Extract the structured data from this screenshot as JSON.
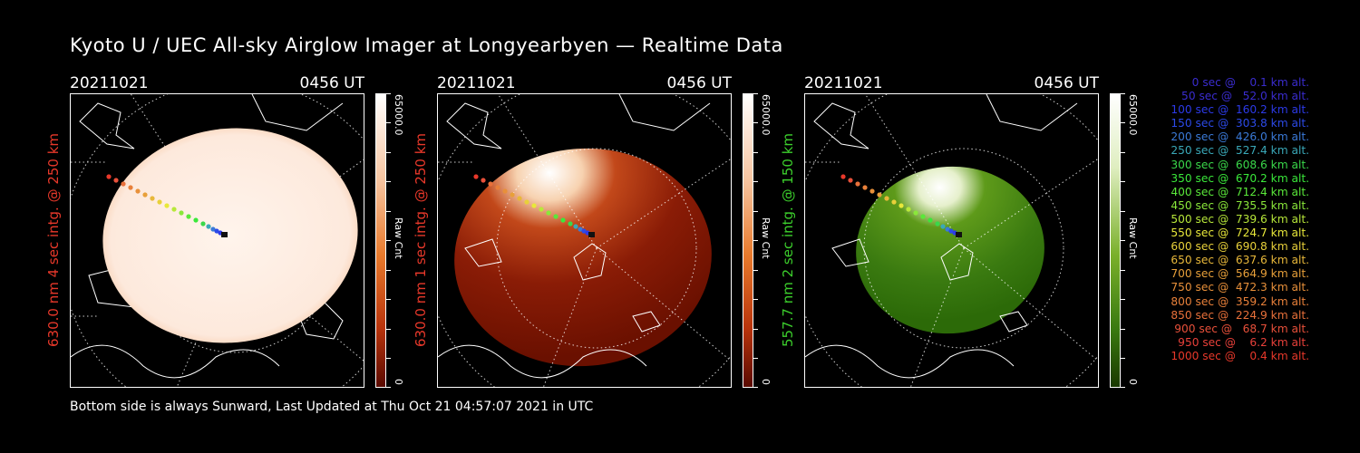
{
  "title": "Kyoto U / UEC All-sky Airglow Imager at Longyearbyen — Realtime Data",
  "footer": "Bottom side is always Sunward, Last Updated at Thu Oct 21 04:57:07 2021 in UTC",
  "panels": [
    {
      "date": "20211021",
      "time": "0456 UT",
      "label": "630.0 nm 4 sec intg. @ 250 km",
      "label_color": "#e8382a",
      "colorbar_max": "65000.0",
      "colorbar_min": "0",
      "colorbar_label": "Raw Cnt",
      "colorbar_top": "#ffffff",
      "colorbar_mid": "#e87a2c",
      "colorbar_bottom": "#5a0a00"
    },
    {
      "date": "20211021",
      "time": "0456 UT",
      "label": "630.0 nm 1 sec intg. @ 250 km",
      "label_color": "#e8382a",
      "colorbar_max": "65000.0",
      "colorbar_min": "0",
      "colorbar_label": "Raw Cnt",
      "colorbar_top": "#ffffff",
      "colorbar_mid": "#e87a2c",
      "colorbar_bottom": "#5a0a00"
    },
    {
      "date": "20211021",
      "time": "0456 UT",
      "label": "557.7 nm 2 sec intg. @ 150 km",
      "label_color": "#3ccf2c",
      "colorbar_max": "65000.0",
      "colorbar_min": "0",
      "colorbar_label": "Raw Cnt",
      "colorbar_top": "#ffffff",
      "colorbar_mid": "#7ab02a",
      "colorbar_bottom": "#1a3a00"
    }
  ],
  "legend": [
    {
      "text": "   0 sec @    0.1 km alt.",
      "color": "#3a2ccf"
    },
    {
      "text": "  50 sec @   52.0 km alt.",
      "color": "#3a2ccf"
    },
    {
      "text": " 100 sec @  160.2 km alt.",
      "color": "#2c3ae8"
    },
    {
      "text": " 150 sec @  303.8 km alt.",
      "color": "#2c4ae8"
    },
    {
      "text": " 200 sec @  426.0 km alt.",
      "color": "#3a7ad8"
    },
    {
      "text": " 250 sec @  527.4 km alt.",
      "color": "#3aa8b8"
    },
    {
      "text": " 300 sec @  608.6 km alt.",
      "color": "#3ad84a"
    },
    {
      "text": " 350 sec @  670.2 km alt.",
      "color": "#3ae83a"
    },
    {
      "text": " 400 sec @  712.4 km alt.",
      "color": "#5ae83a"
    },
    {
      "text": " 450 sec @  735.5 km alt.",
      "color": "#8ae83a"
    },
    {
      "text": " 500 sec @  739.6 km alt.",
      "color": "#b8e83a"
    },
    {
      "text": " 550 sec @  724.7 km alt.",
      "color": "#e8e83a"
    },
    {
      "text": " 600 sec @  690.8 km alt.",
      "color": "#e8d03a"
    },
    {
      "text": " 650 sec @  637.6 km alt.",
      "color": "#e8b83a"
    },
    {
      "text": " 700 sec @  564.9 km alt.",
      "color": "#e8a03a"
    },
    {
      "text": " 750 sec @  472.3 km alt.",
      "color": "#e8903a"
    },
    {
      "text": " 800 sec @  359.2 km alt.",
      "color": "#e8803a"
    },
    {
      "text": " 850 sec @  224.9 km alt.",
      "color": "#e8703a"
    },
    {
      "text": " 900 sec @   68.7 km alt.",
      "color": "#e8503a"
    },
    {
      "text": " 950 sec @    6.2 km alt.",
      "color": "#e8403a"
    },
    {
      "text": "1000 sec @    0.4 km alt.",
      "color": "#e8382a"
    }
  ],
  "legend_symbol": "@"
}
